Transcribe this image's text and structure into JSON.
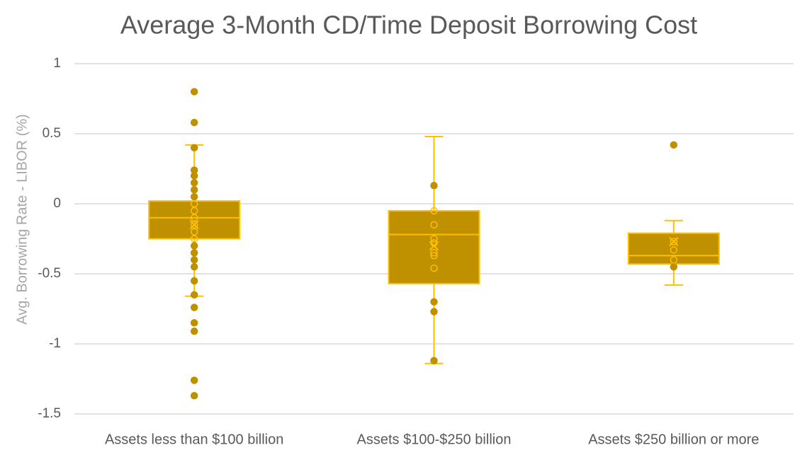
{
  "chart_data": {
    "type": "box",
    "title": "Average 3-Month CD/Time Deposit Borrowing Cost",
    "ylabel": "Avg. Borrowing Rate - LIBOR (%)",
    "categories": [
      "Assets less than $100 billion",
      "Assets $100-$250 billion",
      "Assets $250 billion or more"
    ],
    "fill_color": "#bf9000",
    "line_color": "#ffc000",
    "grid": true,
    "ylim": [
      -1.5,
      1
    ],
    "yticks": [
      -1.5,
      -1,
      -0.5,
      0,
      0.5,
      1
    ],
    "boxes": [
      {
        "whisker_low": -0.66,
        "q1": -0.25,
        "median": -0.1,
        "q3": 0.02,
        "whisker_high": 0.42,
        "mean": -0.15,
        "points": [
          0.8,
          0.58,
          0.4,
          0.24,
          0.2,
          0.15,
          0.1,
          0.05,
          0.0,
          -0.05,
          -0.1,
          -0.15,
          -0.2,
          -0.25,
          -0.3,
          -0.35,
          -0.4,
          -0.45,
          -0.55,
          -0.65,
          -0.74,
          -0.85,
          -0.91,
          -1.26,
          -1.37
        ]
      },
      {
        "whisker_low": -1.14,
        "q1": -0.57,
        "median": -0.22,
        "q3": -0.05,
        "whisker_high": 0.48,
        "mean": -0.3,
        "points": [
          0.13,
          -0.05,
          -0.15,
          -0.25,
          -0.28,
          -0.35,
          -0.37,
          -0.46,
          -0.7,
          -0.77,
          -1.12
        ]
      },
      {
        "whisker_low": -0.58,
        "q1": -0.43,
        "median": -0.37,
        "q3": -0.21,
        "whisker_high": -0.12,
        "mean": -0.27,
        "points": [
          0.42,
          -0.27,
          -0.33,
          -0.4,
          -0.45
        ]
      }
    ]
  }
}
